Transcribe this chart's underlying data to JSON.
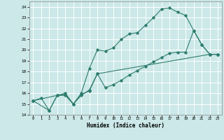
{
  "xlabel": "Humidex (Indice chaleur)",
  "bg_color": "#cce8e8",
  "grid_color": "#ffffff",
  "line_color": "#2e7d6e",
  "xlim": [
    -0.5,
    23.5
  ],
  "ylim": [
    14,
    24.5
  ],
  "xticks": [
    0,
    1,
    2,
    3,
    4,
    5,
    6,
    7,
    8,
    9,
    10,
    11,
    12,
    13,
    14,
    15,
    16,
    17,
    18,
    19,
    20,
    21,
    22,
    23
  ],
  "yticks": [
    14,
    15,
    16,
    17,
    18,
    19,
    20,
    21,
    22,
    23,
    24
  ],
  "curve1_x": [
    0,
    1,
    2,
    3,
    4,
    5,
    6,
    7,
    8,
    9,
    10,
    11,
    12,
    13,
    14,
    15,
    16,
    17,
    18,
    19,
    20,
    21,
    22,
    23
  ],
  "curve1_y": [
    15.3,
    15.55,
    14.4,
    15.8,
    15.8,
    15.0,
    16.0,
    18.3,
    20.0,
    19.9,
    20.2,
    21.0,
    21.5,
    21.6,
    22.3,
    23.0,
    23.8,
    23.9,
    23.5,
    23.2,
    21.8,
    20.5,
    19.6,
    19.6
  ],
  "curve2_x": [
    0,
    3,
    4,
    5,
    6,
    7,
    8,
    9,
    10,
    11,
    12,
    13,
    14,
    15,
    16,
    17,
    18,
    19,
    20,
    21,
    22,
    23
  ],
  "curve2_y": [
    15.3,
    15.8,
    15.9,
    15.0,
    15.9,
    16.2,
    17.8,
    16.5,
    16.8,
    17.2,
    17.7,
    18.1,
    18.5,
    18.9,
    19.3,
    19.7,
    19.8,
    19.8,
    21.8,
    20.5,
    19.6,
    19.6
  ],
  "curve3_x": [
    0,
    2,
    3,
    4,
    5,
    6,
    7,
    8,
    22,
    23
  ],
  "curve3_y": [
    15.3,
    14.4,
    15.8,
    16.0,
    15.0,
    15.8,
    16.3,
    17.8,
    19.6,
    19.6
  ]
}
